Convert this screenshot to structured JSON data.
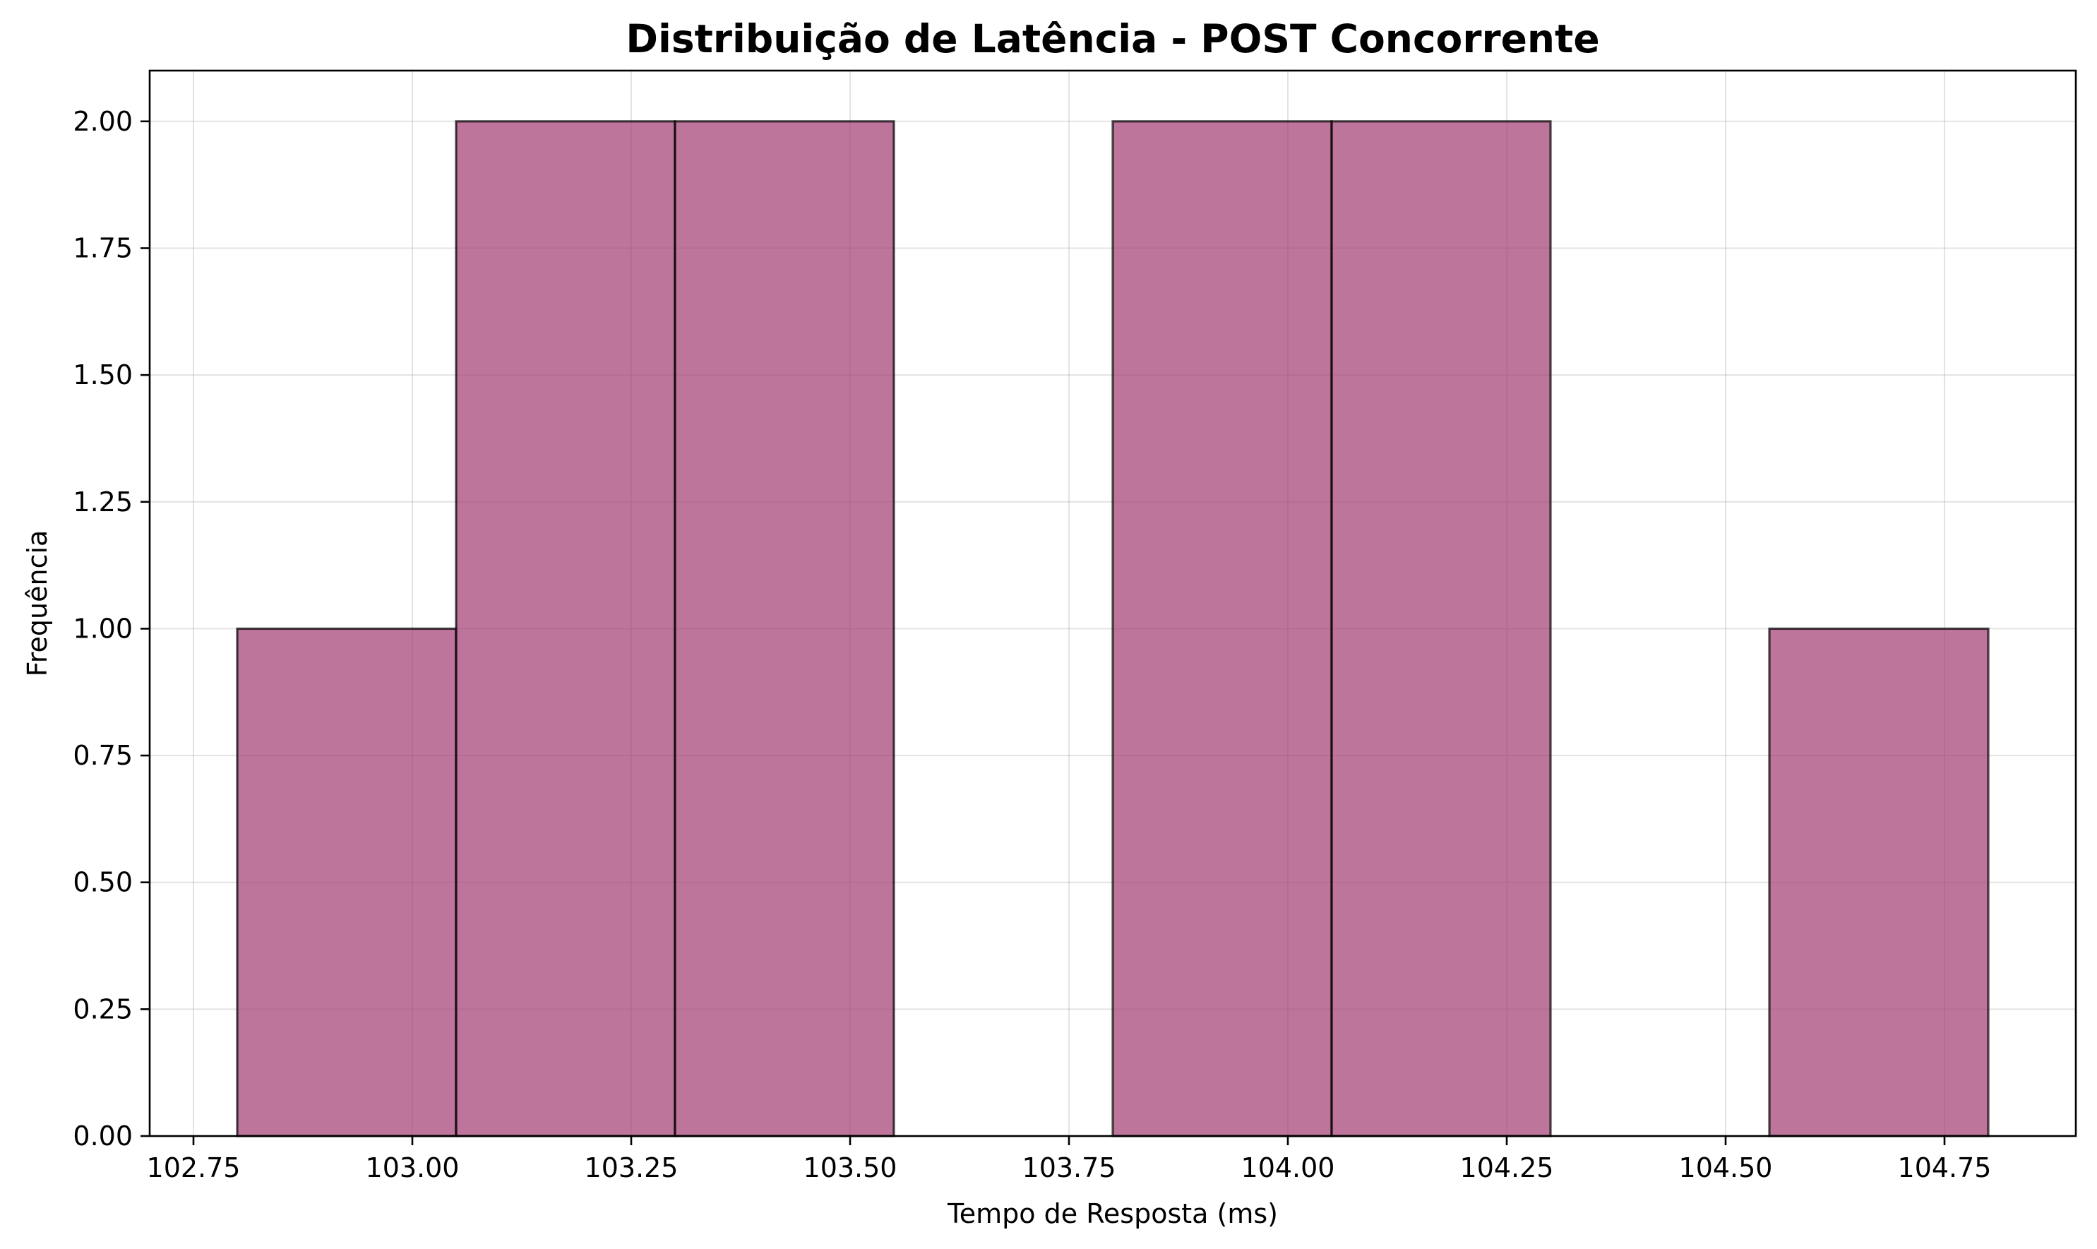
{
  "chart_data": {
    "type": "bar",
    "subtype": "histogram",
    "title": "Distribuição de Latência - POST Concorrente",
    "xlabel": "Tempo de Resposta (ms)",
    "ylabel": "Frequência",
    "xlim": [
      102.7,
      104.9
    ],
    "ylim": [
      0,
      2.1
    ],
    "xticks": [
      102.75,
      103.0,
      103.25,
      103.5,
      103.75,
      104.0,
      104.25,
      104.5,
      104.75
    ],
    "xtick_labels": [
      "102.75",
      "103.00",
      "103.25",
      "103.50",
      "103.75",
      "104.00",
      "104.25",
      "104.50",
      "104.75"
    ],
    "yticks": [
      0,
      0.25,
      0.5,
      0.75,
      1.0,
      1.25,
      1.5,
      1.75,
      2.0
    ],
    "ytick_labels": [
      "0.00",
      "0.25",
      "0.50",
      "0.75",
      "1.00",
      "1.25",
      "1.50",
      "1.75",
      "2.00"
    ],
    "bin_edges": [
      102.8,
      103.05,
      103.3,
      103.55,
      103.8,
      104.05,
      104.3,
      104.55,
      104.8
    ],
    "counts": [
      1,
      2,
      2,
      0,
      2,
      2,
      0,
      1
    ],
    "bar_color": "#a23b72",
    "bar_alpha": 0.7,
    "edge_color": "#000000",
    "grid": true,
    "legend": "none"
  }
}
